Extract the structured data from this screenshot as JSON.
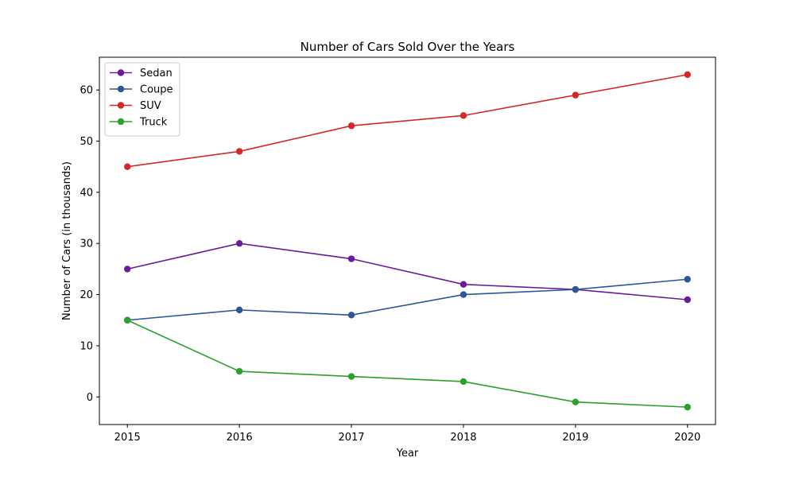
{
  "chart_data": {
    "type": "line",
    "title": "Number of Cars Sold Over the Years",
    "xlabel": "Year",
    "ylabel": "Number of Cars (in thousands)",
    "x": [
      2015,
      2016,
      2017,
      2018,
      2019,
      2020
    ],
    "x_tick_labels": [
      "2015",
      "2016",
      "2017",
      "2018",
      "2019",
      "2020"
    ],
    "xlim": [
      2014.75,
      2020.25
    ],
    "ylim": [
      -5.4,
      66.4
    ],
    "y_ticks": [
      0,
      10,
      20,
      30,
      40,
      50,
      60
    ],
    "y_tick_labels": [
      "0",
      "10",
      "20",
      "30",
      "40",
      "50",
      "60"
    ],
    "grid": false,
    "legend_position": "top-left",
    "series": [
      {
        "name": "Sedan",
        "color": "#6a1b9a",
        "values": [
          25,
          30,
          27,
          22,
          21,
          19
        ]
      },
      {
        "name": "Coupe",
        "color": "#2b5797",
        "values": [
          15,
          17,
          16,
          20,
          21,
          23
        ]
      },
      {
        "name": "SUV",
        "color": "#d62728",
        "values": [
          45,
          48,
          53,
          55,
          59,
          63
        ]
      },
      {
        "name": "Truck",
        "color": "#2ca02c",
        "values": [
          15,
          5,
          4,
          3,
          -1,
          -2
        ]
      }
    ]
  }
}
